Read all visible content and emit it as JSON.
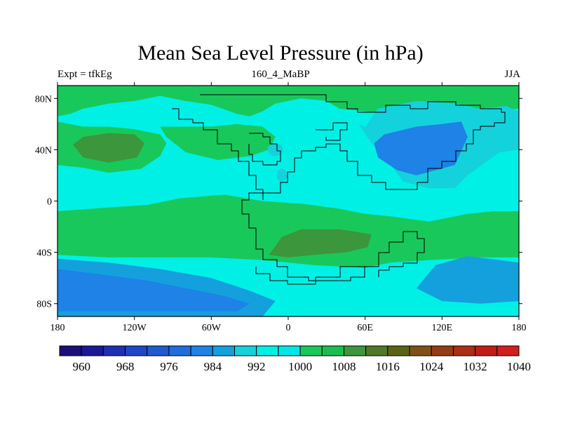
{
  "chart_data": {
    "type": "heatmap",
    "title": "Mean Sea Level Pressure (in hPa)",
    "left_string": "Expt = tfkEg",
    "center_string": "160_4_MaBP",
    "right_string": "JJA",
    "x_ticks": [
      "180",
      "120W",
      "60W",
      "0",
      "60E",
      "120E",
      "180"
    ],
    "x_tick_values": [
      -180,
      -120,
      -60,
      0,
      60,
      120,
      180
    ],
    "y_ticks": [
      "80N",
      "40N",
      "0",
      "40S",
      "80S"
    ],
    "y_tick_values": [
      80,
      40,
      0,
      -40,
      -80
    ],
    "xlim": [
      -180,
      180
    ],
    "ylim": [
      -90,
      90
    ],
    "colorbar": {
      "levels": [
        960,
        964,
        968,
        972,
        976,
        980,
        984,
        988,
        992,
        996,
        1000,
        1004,
        1008,
        1012,
        1016,
        1020,
        1024,
        1028,
        1032,
        1036,
        1040
      ],
      "labels": [
        "960",
        "968",
        "976",
        "984",
        "992",
        "1000",
        "1008",
        "1016",
        "1024",
        "1032",
        "1040"
      ],
      "colors": [
        "#1a0f78",
        "#1a1a96",
        "#1e2fb4",
        "#1e46c8",
        "#1e5ad2",
        "#1e6edc",
        "#1e82e6",
        "#14a0dc",
        "#14d2dc",
        "#00f0e6",
        "#00e6e6",
        "#19c85a",
        "#19be50",
        "#3c963c",
        "#507828",
        "#5a6414",
        "#825014",
        "#963c14",
        "#aa2d14",
        "#be1e14",
        "#d21e1e"
      ]
    },
    "regions": [
      {
        "name": "background",
        "level": 996
      },
      {
        "name": "arctic-band",
        "level": 1004
      },
      {
        "name": "north-pacific-high",
        "level": 1004
      },
      {
        "name": "north-pacific-core",
        "level": 1012
      },
      {
        "name": "north-atlantic-high",
        "level": 1004
      },
      {
        "name": "south-subtropical-belt",
        "level": 1004
      },
      {
        "name": "southern-africa-high",
        "level": 1004
      },
      {
        "name": "southern-africa-core",
        "level": 1012
      },
      {
        "name": "asian-low-outer",
        "level": 992
      },
      {
        "name": "asian-low-inner",
        "level": 984
      },
      {
        "name": "southern-ocean-low-west",
        "level": 988
      },
      {
        "name": "southern-ocean-low-west-inner",
        "level": 984
      },
      {
        "name": "southern-ocean-low-east",
        "level": 988
      }
    ]
  }
}
